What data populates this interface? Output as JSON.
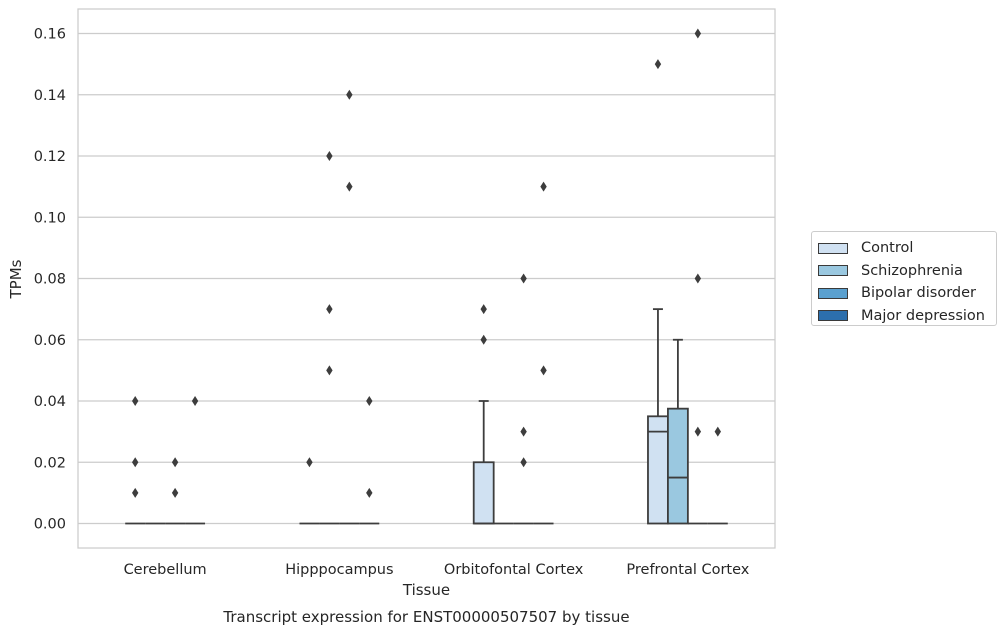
{
  "chart_data": {
    "type": "box",
    "title": "Transcript expression for ENST00000507507 by tissue",
    "xlabel": "Tissue",
    "ylabel": "TPMs",
    "ylim": [
      -0.008,
      0.168
    ],
    "yticks": [
      "0.00",
      "0.02",
      "0.04",
      "0.06",
      "0.08",
      "0.10",
      "0.12",
      "0.14",
      "0.16"
    ],
    "categories": [
      "Cerebellum",
      "Hipppocampus",
      "Orbitofontal Cortex",
      "Prefrontal Cortex"
    ],
    "grid": "horizontal",
    "legend_position": "right",
    "series": [
      {
        "name": "Control",
        "color": "#d0e1f2",
        "boxes": [
          {
            "q1": 0,
            "median": 0,
            "q3": 0,
            "whislo": 0,
            "whishi": 0,
            "fliers": [
              0.01,
              0.02,
              0.04
            ]
          },
          {
            "q1": 0,
            "median": 0,
            "q3": 0,
            "whislo": 0,
            "whishi": 0,
            "fliers": [
              0.02
            ]
          },
          {
            "q1": 0,
            "median": 0,
            "q3": 0.02,
            "whislo": 0,
            "whishi": 0.04,
            "fliers": [
              0.06,
              0.07
            ]
          },
          {
            "q1": 0,
            "median": 0.03,
            "q3": 0.035,
            "whislo": 0,
            "whishi": 0.07,
            "fliers": [
              0.15
            ]
          }
        ]
      },
      {
        "name": "Schizophrenia",
        "color": "#9ac8e0",
        "boxes": [
          {
            "q1": 0,
            "median": 0,
            "q3": 0,
            "whislo": 0,
            "whishi": 0,
            "fliers": []
          },
          {
            "q1": 0,
            "median": 0,
            "q3": 0,
            "whislo": 0,
            "whishi": 0,
            "fliers": [
              0.05,
              0.07,
              0.12
            ]
          },
          {
            "q1": 0,
            "median": 0,
            "q3": 0,
            "whislo": 0,
            "whishi": 0,
            "fliers": []
          },
          {
            "q1": 0,
            "median": 0.015,
            "q3": 0.0375,
            "whislo": 0,
            "whishi": 0.06,
            "fliers": []
          }
        ]
      },
      {
        "name": "Bipolar disorder",
        "color": "#5aa0cf",
        "boxes": [
          {
            "q1": 0,
            "median": 0,
            "q3": 0,
            "whislo": 0,
            "whishi": 0,
            "fliers": [
              0.01,
              0.02
            ]
          },
          {
            "q1": 0,
            "median": 0,
            "q3": 0,
            "whislo": 0,
            "whishi": 0,
            "fliers": [
              0.11,
              0.14
            ]
          },
          {
            "q1": 0,
            "median": 0,
            "q3": 0,
            "whislo": 0,
            "whishi": 0,
            "fliers": [
              0.02,
              0.03,
              0.08
            ]
          },
          {
            "q1": 0,
            "median": 0,
            "q3": 0,
            "whislo": 0,
            "whishi": 0,
            "fliers": [
              0.03,
              0.08,
              0.16
            ]
          }
        ]
      },
      {
        "name": "Major depression",
        "color": "#2c6fad",
        "boxes": [
          {
            "q1": 0,
            "median": 0,
            "q3": 0,
            "whislo": 0,
            "whishi": 0,
            "fliers": [
              0.04
            ]
          },
          {
            "q1": 0,
            "median": 0,
            "q3": 0,
            "whislo": 0,
            "whishi": 0,
            "fliers": [
              0.01,
              0.04
            ]
          },
          {
            "q1": 0,
            "median": 0,
            "q3": 0,
            "whislo": 0,
            "whishi": 0,
            "fliers": [
              0.05,
              0.11
            ]
          },
          {
            "q1": 0,
            "median": 0,
            "q3": 0,
            "whislo": 0,
            "whishi": 0,
            "fliers": [
              0.03
            ]
          }
        ]
      }
    ]
  }
}
